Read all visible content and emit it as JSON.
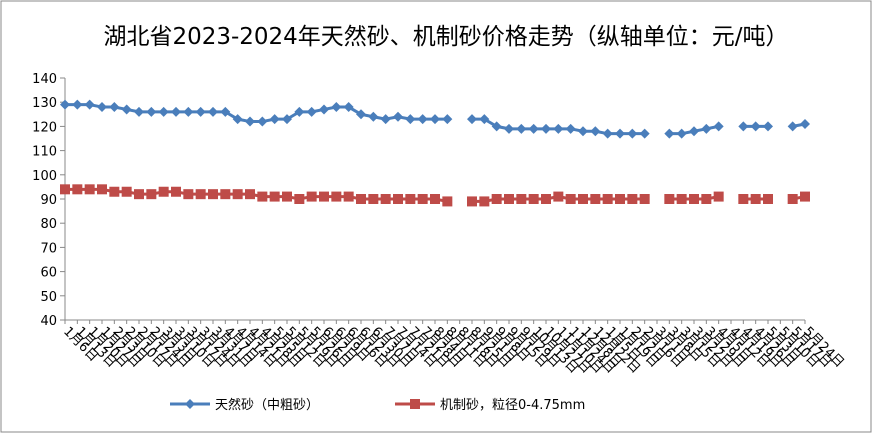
{
  "chart_data": {
    "type": "line",
    "title": "湖北省2023-2024年天然砂、机制砂价格走势（纵轴单位：元/吨）",
    "categories": [
      "1月6日",
      "1月13日",
      "1月20日",
      "1月27日",
      "2月3日",
      "2月10日",
      "2月17日",
      "2月24日",
      "3月3日",
      "3月10日",
      "3月17日",
      "3月24日",
      "3月31日",
      "4月7日",
      "4月14日",
      "4月21日",
      "4月28日",
      "5月5日",
      "5月12日",
      "5月19日",
      "5月26日",
      "6月2日",
      "6月9日",
      "6月16日",
      "6月23日",
      "6月30日",
      "7月7日",
      "7月14日",
      "7月21日",
      "7月28日",
      "8月4日",
      "8月11日",
      "8月18日",
      "8月25日",
      "9月1日",
      "9月8日",
      "9月15日",
      "9月29日",
      "10月13日",
      "10月27日",
      "11月10日",
      "11月24日",
      "12月8日",
      "12月22日",
      "1月5日",
      "1月19日",
      "2月2日",
      "2月16日",
      "3月1日",
      "3月8日",
      "3月15日",
      "3月22日",
      "3月29日",
      "4月5日",
      "4月12日",
      "4月19日",
      "4月26日",
      "5月3日",
      "5月10日",
      "5月17日",
      "5月24日"
    ],
    "series": [
      {
        "name": "天然砂（中粗砂）",
        "color": "#4a7ebb",
        "marker": "diamond",
        "values": [
          129,
          129,
          129,
          128,
          128,
          127,
          126,
          126,
          126,
          126,
          126,
          126,
          126,
          126,
          123,
          122,
          122,
          123,
          123,
          126,
          126,
          127,
          128,
          128,
          125,
          124,
          123,
          124,
          123,
          123,
          123,
          123,
          null,
          123,
          123,
          120,
          119,
          119,
          119,
          119,
          119,
          119,
          118,
          118,
          117,
          117,
          117,
          117,
          null,
          117,
          117,
          118,
          119,
          120,
          null,
          120,
          120,
          120,
          null,
          120,
          121
        ]
      },
      {
        "name": "机制砂，粒径0-4.75mm",
        "color": "#be4b48",
        "marker": "square",
        "values": [
          94,
          94,
          94,
          94,
          93,
          93,
          92,
          92,
          93,
          93,
          92,
          92,
          92,
          92,
          92,
          92,
          91,
          91,
          91,
          90,
          91,
          91,
          91,
          91,
          90,
          90,
          90,
          90,
          90,
          90,
          90,
          89,
          null,
          89,
          89,
          90,
          90,
          90,
          90,
          90,
          91,
          90,
          90,
          90,
          90,
          90,
          90,
          90,
          null,
          90,
          90,
          90,
          90,
          91,
          null,
          90,
          90,
          90,
          null,
          90,
          91
        ]
      }
    ],
    "ylim": [
      40,
      140
    ],
    "yticks": [
      40,
      50,
      60,
      70,
      80,
      90,
      100,
      110,
      120,
      130,
      140
    ],
    "grid": false,
    "legend": "bottom"
  }
}
